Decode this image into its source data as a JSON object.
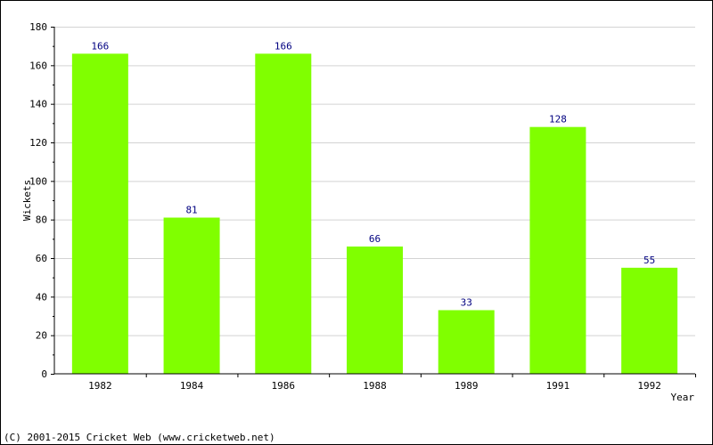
{
  "chart_data": {
    "type": "bar",
    "categories": [
      "1982",
      "1984",
      "1986",
      "1988",
      "1989",
      "1991",
      "1992"
    ],
    "values": [
      166,
      81,
      166,
      66,
      33,
      128,
      55
    ],
    "title": "",
    "xlabel": "Year",
    "ylabel": "Wickets",
    "ylim": [
      0,
      180
    ],
    "yticks": [
      0,
      20,
      40,
      60,
      80,
      100,
      120,
      140,
      160,
      180
    ],
    "grid": true,
    "legend": "none",
    "bar_color": "#80ff00",
    "data_label_color": "#000080",
    "grid_color": "#d3d3d3"
  },
  "footer": {
    "copyright": "(C) 2001-2015 Cricket Web (www.cricketweb.net)"
  }
}
